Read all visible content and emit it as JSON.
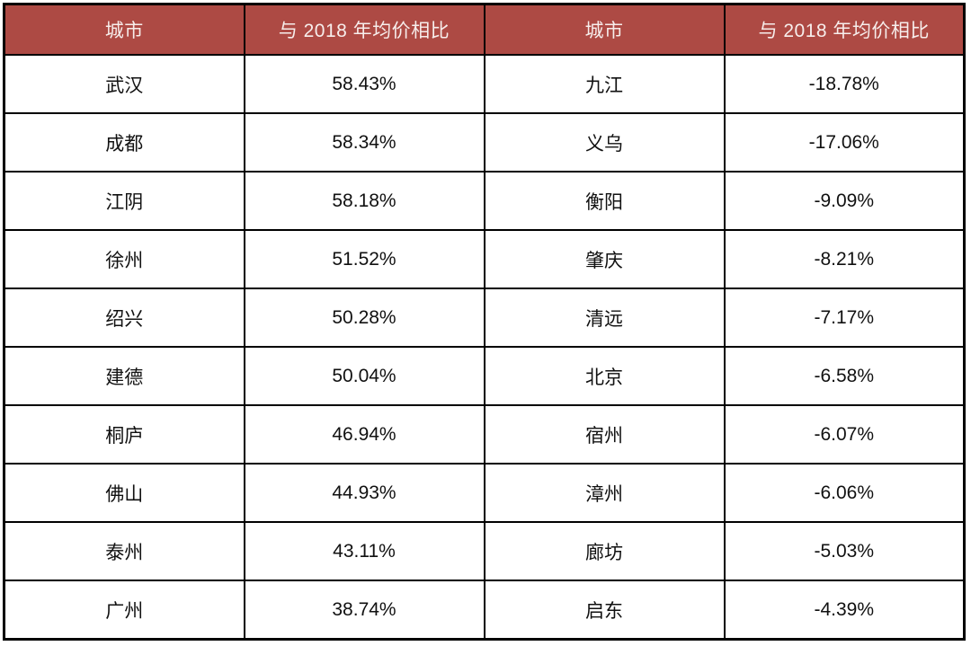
{
  "colors": {
    "header_bg": "#ad4a44",
    "header_text": "#f7eeec",
    "border": "#000000",
    "body_text": "#111111",
    "page_bg": "#ffffff"
  },
  "chart_data": {
    "type": "table",
    "columns": [
      "城市",
      "与 2018 年均价相比",
      "城市",
      "与 2018 年均价相比"
    ],
    "rows": [
      [
        "武汉",
        "58.43%",
        "九江",
        "-18.78%"
      ],
      [
        "成都",
        "58.34%",
        "义乌",
        "-17.06%"
      ],
      [
        "江阴",
        "58.18%",
        "衡阳",
        "-9.09%"
      ],
      [
        "徐州",
        "51.52%",
        "肇庆",
        "-8.21%"
      ],
      [
        "绍兴",
        "50.28%",
        "清远",
        "-7.17%"
      ],
      [
        "建德",
        "50.04%",
        "北京",
        "-6.58%"
      ],
      [
        "桐庐",
        "46.94%",
        "宿州",
        "-6.07%"
      ],
      [
        "佛山",
        "44.93%",
        "漳州",
        "-6.06%"
      ],
      [
        "泰州",
        "43.11%",
        "廊坊",
        "-5.03%"
      ],
      [
        "广州",
        "38.74%",
        "启东",
        "-4.39%"
      ]
    ]
  }
}
